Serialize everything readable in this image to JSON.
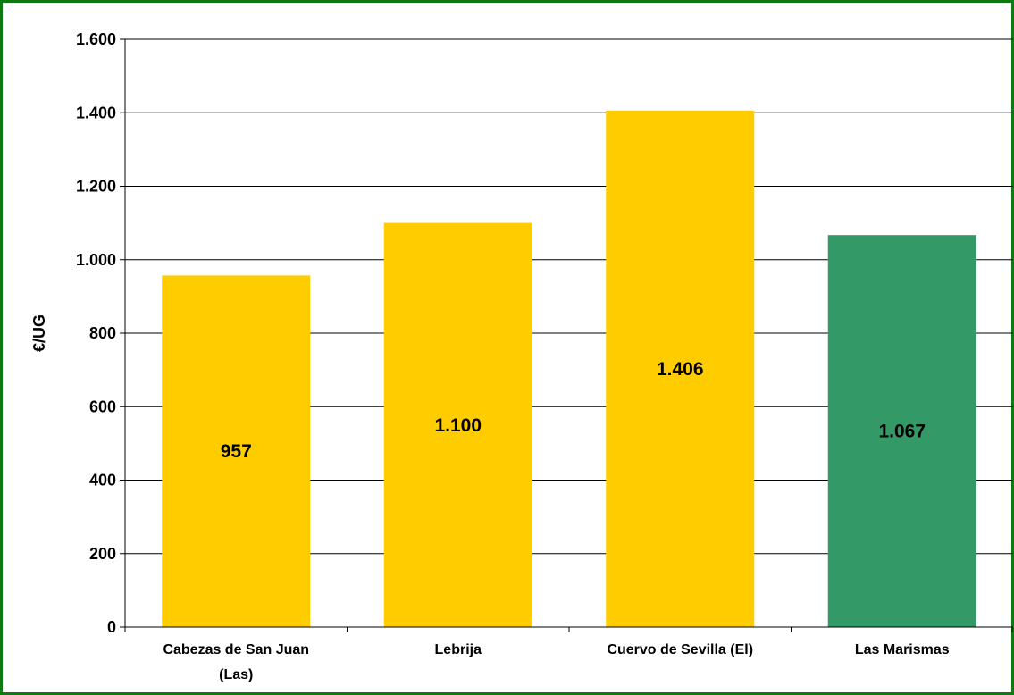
{
  "colors": {
    "frame_border": "#0f7a0f",
    "bar_yellow": "#ffcc00",
    "bar_green": "#339966",
    "gridline": "#000000"
  },
  "chart_data": {
    "type": "bar",
    "title": "",
    "xlabel": "",
    "ylabel": "€/UG",
    "ylim": [
      0,
      1600
    ],
    "yticks": [
      0,
      200,
      400,
      600,
      800,
      1000,
      1200,
      1400,
      1600
    ],
    "ytick_labels": [
      "0",
      "200",
      "400",
      "600",
      "800",
      "1.000",
      "1.200",
      "1.400",
      "1.600"
    ],
    "grid": true,
    "legend": "none",
    "categories": [
      [
        "Cabezas de San Juan",
        "(Las)"
      ],
      [
        "Lebrija"
      ],
      [
        "Cuervo de Sevilla (El)"
      ],
      [
        "Las Marismas"
      ]
    ],
    "values": [
      957,
      1100,
      1406,
      1067
    ],
    "data_labels": [
      "957",
      "1.100",
      "1.406",
      "1.067"
    ],
    "bar_colors": [
      "#ffcc00",
      "#ffcc00",
      "#ffcc00",
      "#339966"
    ]
  }
}
